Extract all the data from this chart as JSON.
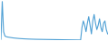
{
  "values": [
    50,
    1800,
    400,
    200,
    170,
    155,
    145,
    135,
    125,
    115,
    108,
    102,
    96,
    90,
    85,
    80,
    76,
    72,
    69,
    66,
    63,
    60,
    58,
    56,
    54,
    52,
    50,
    49,
    48,
    47,
    46,
    45,
    44,
    43,
    42,
    41,
    40,
    39,
    38,
    37,
    36,
    35,
    34,
    33,
    32,
    31,
    30,
    29,
    28,
    27,
    26,
    25,
    24,
    23,
    22,
    21,
    20,
    19,
    18,
    17,
    600,
    900,
    700,
    400,
    800,
    1100,
    700,
    300,
    900,
    1200,
    800,
    500,
    700,
    1000,
    600,
    400,
    800,
    900,
    500,
    300
  ],
  "line_color": "#4d9fd4",
  "background_color": "#ffffff",
  "linewidth": 0.8
}
